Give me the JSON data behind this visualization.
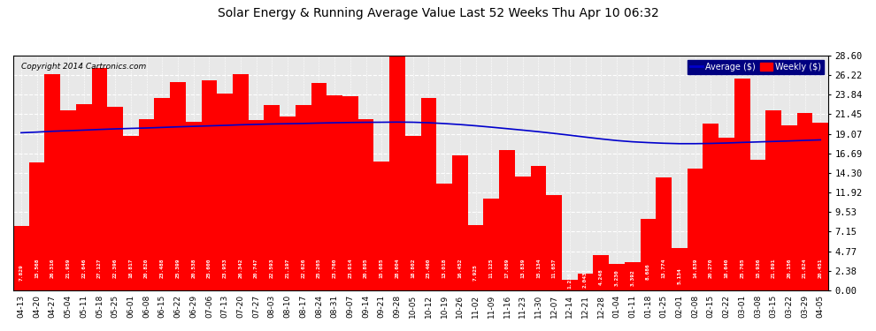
{
  "title": "Solar Energy & Running Average Value Last 52 Weeks Thu Apr 10 06:32",
  "copyright": "Copyright 2014 Cartronics.com",
  "bar_color": "#ff0000",
  "avg_line_color": "#0000cc",
  "background_color": "#ffffff",
  "plot_bg_color": "#e8e8e8",
  "grid_color": "#ffffff",
  "ytick_labels": [
    "0.00",
    "2.38",
    "4.77",
    "7.15",
    "9.53",
    "11.92",
    "14.30",
    "16.69",
    "19.07",
    "21.45",
    "23.84",
    "26.22",
    "28.60"
  ],
  "ytick_values": [
    0.0,
    2.38,
    4.77,
    7.15,
    9.53,
    11.92,
    14.3,
    16.69,
    19.07,
    21.45,
    23.84,
    26.22,
    28.6
  ],
  "ylim": [
    0.0,
    28.6
  ],
  "legend_avg_label": "Average ($)",
  "legend_weekly_label": "Weekly ($)",
  "categories": [
    "04-13",
    "04-20",
    "04-27",
    "05-04",
    "05-11",
    "05-18",
    "05-25",
    "06-01",
    "06-08",
    "06-15",
    "06-22",
    "06-29",
    "07-06",
    "07-13",
    "07-20",
    "07-27",
    "08-03",
    "08-10",
    "08-17",
    "08-24",
    "08-31",
    "09-07",
    "09-14",
    "09-21",
    "09-28",
    "10-05",
    "10-12",
    "10-19",
    "10-26",
    "11-02",
    "11-09",
    "11-16",
    "11-23",
    "11-30",
    "12-07",
    "12-14",
    "12-21",
    "12-28",
    "01-04",
    "01-11",
    "01-18",
    "01-25",
    "02-01",
    "02-08",
    "02-15",
    "02-22",
    "03-01",
    "03-08",
    "03-15",
    "03-22",
    "03-29",
    "04-05"
  ],
  "weekly_values": [
    7.829,
    15.568,
    26.316,
    21.959,
    22.646,
    27.127,
    22.396,
    18.817,
    20.82,
    23.488,
    25.399,
    20.538,
    25.6,
    23.953,
    26.342,
    20.747,
    22.593,
    21.197,
    22.626,
    25.265,
    23.76,
    23.614,
    20.895,
    15.685,
    28.604,
    18.802,
    23.46,
    13.018,
    16.452,
    7.925,
    11.125,
    17.089,
    13.839,
    15.134,
    11.657,
    1.236,
    2.043,
    4.248,
    3.23,
    3.392,
    8.686,
    13.774,
    5.134,
    14.839,
    20.27,
    18.64,
    25.765,
    15.936,
    21.891,
    20.156,
    21.624,
    20.451
  ],
  "avg_values": [
    19.2,
    19.28,
    19.38,
    19.45,
    19.52,
    19.6,
    19.67,
    19.73,
    19.78,
    19.85,
    19.92,
    19.98,
    20.04,
    20.1,
    20.17,
    20.22,
    20.27,
    20.3,
    20.33,
    20.38,
    20.42,
    20.45,
    20.47,
    20.48,
    20.5,
    20.48,
    20.42,
    20.32,
    20.2,
    20.05,
    19.88,
    19.7,
    19.52,
    19.33,
    19.12,
    18.9,
    18.67,
    18.45,
    18.25,
    18.1,
    18.0,
    17.92,
    17.87,
    17.87,
    17.9,
    17.95,
    18.02,
    18.08,
    18.14,
    18.2,
    18.27,
    18.33
  ]
}
